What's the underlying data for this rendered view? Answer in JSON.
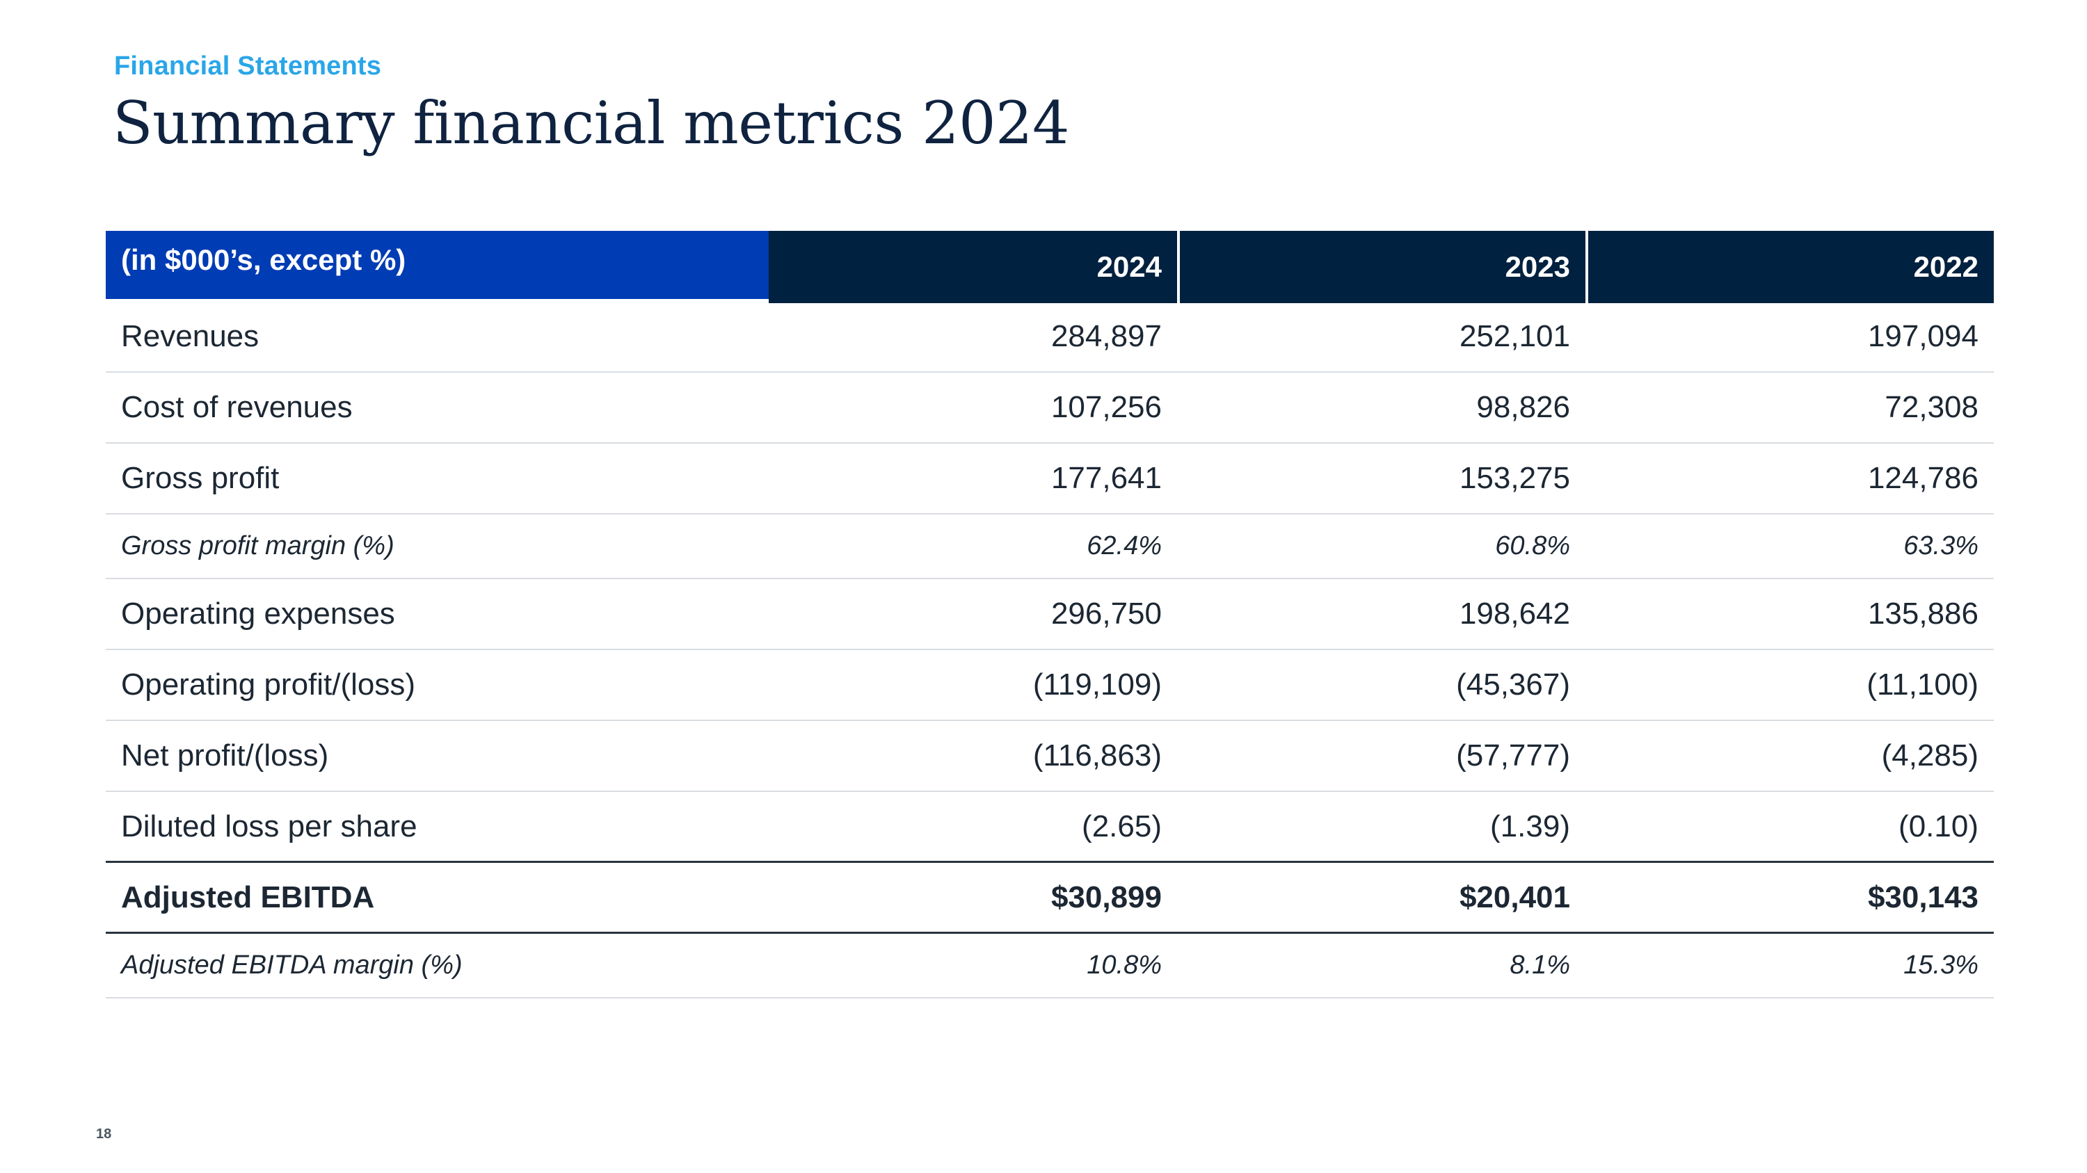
{
  "header": {
    "eyebrow": "Financial Statements",
    "title": "Summary financial metrics 2024"
  },
  "table": {
    "corner_label": "(in $000’s, except %)",
    "columns": [
      "2024",
      "2023",
      "2022"
    ],
    "rows": [
      {
        "label": "Revenues",
        "values": [
          "284,897",
          "252,101",
          "197,094"
        ]
      },
      {
        "label": "Cost of revenues",
        "values": [
          "107,256",
          "98,826",
          "72,308"
        ]
      },
      {
        "label": "Gross profit",
        "values": [
          "177,641",
          "153,275",
          "124,786"
        ]
      },
      {
        "label": "Gross profit margin (%)",
        "values": [
          "62.4%",
          "60.8%",
          "63.3%"
        ]
      },
      {
        "label": "Operating expenses",
        "values": [
          "296,750",
          "198,642",
          "135,886"
        ]
      },
      {
        "label": "Operating profit/(loss)",
        "values": [
          "(119,109)",
          "(45,367)",
          "(11,100)"
        ]
      },
      {
        "label": "Net profit/(loss)",
        "values": [
          "(116,863)",
          "(57,777)",
          "(4,285)"
        ]
      },
      {
        "label": "Diluted loss per share",
        "values": [
          "(2.65)",
          "(1.39)",
          "(0.10)"
        ]
      },
      {
        "label": "Adjusted EBITDA",
        "values": [
          "$30,899",
          "$20,401",
          "$30,143"
        ]
      },
      {
        "label": "Adjusted EBITDA margin (%)",
        "values": [
          "10.8%",
          "8.1%",
          "15.3%"
        ]
      }
    ]
  },
  "footer": {
    "page_number": "18"
  },
  "colors": {
    "eyebrow": "#2aa6e8",
    "title": "#0f2340",
    "header_corner": "#003cb4",
    "header_years": "#00213f"
  }
}
